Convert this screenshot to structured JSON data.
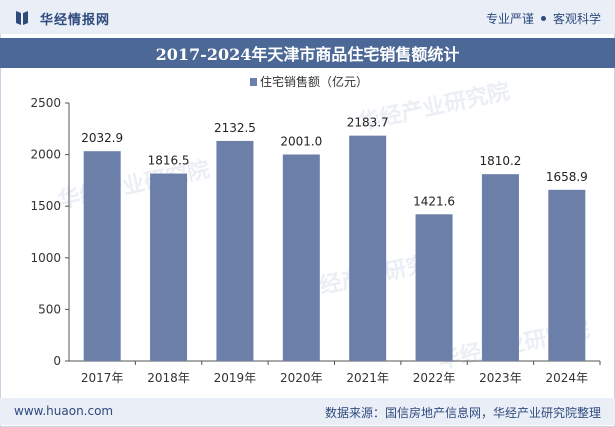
{
  "header": {
    "brand_name": "华经情报网",
    "tag_1": "专业严谨",
    "tag_2": "客观科学"
  },
  "footer": {
    "url": "www.huaon.com",
    "source": "数据来源：国信房地产信息网，华经产业研究院整理"
  },
  "watermark": "华经产业研究院",
  "colors": {
    "bar": "#6b7fa8",
    "title_bg": "#4c6897",
    "band_bg": "#e9eef7",
    "brand_text": "#2f4a7d"
  },
  "chart_data": {
    "type": "bar",
    "title": "2017-2024年天津市商品住宅销售额统计",
    "legend_position": "top-center",
    "categories": [
      "2017年",
      "2018年",
      "2019年",
      "2020年",
      "2021年",
      "2022年",
      "2023年",
      "2024年"
    ],
    "series": [
      {
        "name": "住宅销售额（亿元）",
        "values": [
          2032.9,
          1816.5,
          2132.5,
          2001.0,
          2183.7,
          1421.6,
          1810.2,
          1658.9
        ],
        "labels": [
          "2032.9",
          "1816.5",
          "2132.5",
          "2001.0",
          "2183.7",
          "1421.6",
          "1810.2",
          "1658.9"
        ]
      }
    ],
    "ylim": [
      0,
      2500
    ],
    "yticks": [
      0,
      500,
      1000,
      1500,
      2000,
      2500
    ],
    "grid": false
  }
}
